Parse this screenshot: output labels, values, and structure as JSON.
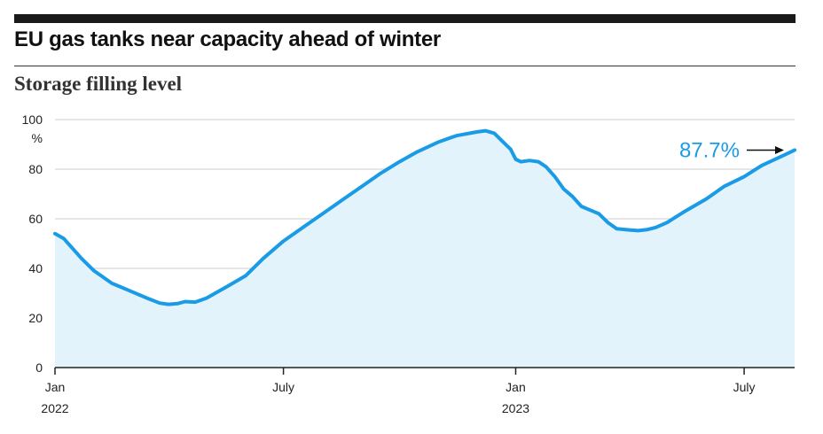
{
  "header": {
    "title": "EU gas tanks near capacity ahead of winter",
    "subtitle": "Storage filling level"
  },
  "colors": {
    "line": "#1a9be6",
    "fill": "#e3f3fc",
    "grid": "#cccccc",
    "axis": "#222222",
    "text": "#222222"
  },
  "chart_data": {
    "type": "area",
    "title": "EU gas tanks near capacity ahead of winter",
    "subtitle": "Storage filling level",
    "xlabel": "",
    "ylabel": "%",
    "ylim": [
      0,
      100
    ],
    "xlim": [
      "2022-01-01",
      "2023-08-10"
    ],
    "grid": true,
    "y_ticks": [
      {
        "value": 0,
        "label": "0"
      },
      {
        "value": 20,
        "label": "20"
      },
      {
        "value": 40,
        "label": "40"
      },
      {
        "value": 60,
        "label": "60"
      },
      {
        "value": 80,
        "label": "80"
      },
      {
        "value": 100,
        "label": "100"
      }
    ],
    "y_unit": "%",
    "x_ticks": [
      {
        "date": "2022-01-01",
        "label": "Jan",
        "year": "2022"
      },
      {
        "date": "2022-07-01",
        "label": "July",
        "year": ""
      },
      {
        "date": "2023-01-01",
        "label": "Jan",
        "year": "2023"
      },
      {
        "date": "2023-07-01",
        "label": "July",
        "year": ""
      }
    ],
    "series": [
      {
        "points": [
          [
            "2022-01-01",
            54
          ],
          [
            "2022-01-08",
            52
          ],
          [
            "2022-01-15",
            48
          ],
          [
            "2022-01-22",
            44
          ],
          [
            "2022-02-01",
            39
          ],
          [
            "2022-02-15",
            34
          ],
          [
            "2022-03-01",
            31
          ],
          [
            "2022-03-15",
            28
          ],
          [
            "2022-03-25",
            26
          ],
          [
            "2022-04-01",
            25.5
          ],
          [
            "2022-04-08",
            25.8
          ],
          [
            "2022-04-14",
            26.6
          ],
          [
            "2022-04-22",
            26.4
          ],
          [
            "2022-05-01",
            28
          ],
          [
            "2022-05-15",
            32
          ],
          [
            "2022-06-01",
            37
          ],
          [
            "2022-06-15",
            44
          ],
          [
            "2022-07-01",
            51
          ],
          [
            "2022-07-15",
            56
          ],
          [
            "2022-08-01",
            62
          ],
          [
            "2022-08-15",
            67
          ],
          [
            "2022-09-01",
            73
          ],
          [
            "2022-09-15",
            78
          ],
          [
            "2022-10-01",
            83
          ],
          [
            "2022-10-15",
            87
          ],
          [
            "2022-11-01",
            91
          ],
          [
            "2022-11-15",
            93.5
          ],
          [
            "2022-12-01",
            95
          ],
          [
            "2022-12-08",
            95.5
          ],
          [
            "2022-12-15",
            94.5
          ],
          [
            "2022-12-22",
            91
          ],
          [
            "2022-12-28",
            88
          ],
          [
            "2023-01-01",
            84
          ],
          [
            "2023-01-05",
            83
          ],
          [
            "2023-01-12",
            83.5
          ],
          [
            "2023-01-19",
            83
          ],
          [
            "2023-01-25",
            81
          ],
          [
            "2023-02-01",
            77
          ],
          [
            "2023-02-08",
            72
          ],
          [
            "2023-02-15",
            69
          ],
          [
            "2023-02-22",
            65
          ],
          [
            "2023-03-01",
            63.5
          ],
          [
            "2023-03-08",
            62
          ],
          [
            "2023-03-15",
            58.5
          ],
          [
            "2023-03-22",
            56
          ],
          [
            "2023-04-01",
            55.5
          ],
          [
            "2023-04-08",
            55.2
          ],
          [
            "2023-04-15",
            55.6
          ],
          [
            "2023-04-22",
            56.5
          ],
          [
            "2023-05-01",
            58.5
          ],
          [
            "2023-05-15",
            63
          ],
          [
            "2023-06-01",
            68
          ],
          [
            "2023-06-15",
            73
          ],
          [
            "2023-07-01",
            77
          ],
          [
            "2023-07-15",
            81.5
          ],
          [
            "2023-08-01",
            85.5
          ],
          [
            "2023-08-10",
            87.7
          ]
        ]
      }
    ],
    "annotations": [
      {
        "text": "87.7%",
        "date": "2023-08-10",
        "value": 87.7
      }
    ]
  }
}
